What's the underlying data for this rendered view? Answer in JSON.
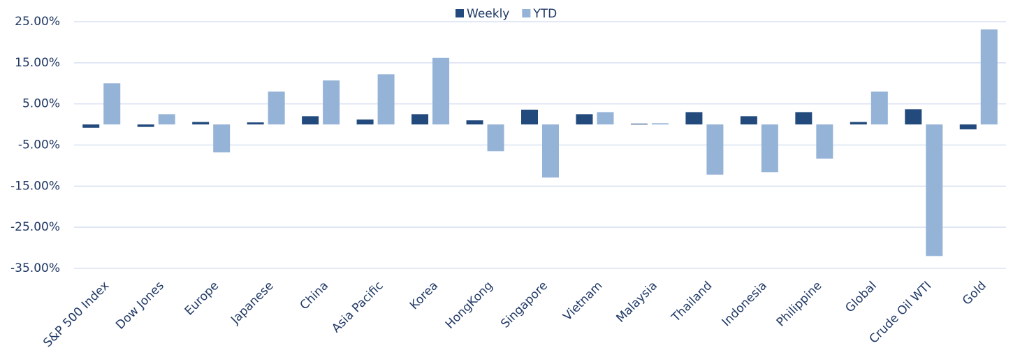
{
  "chart_data": {
    "type": "bar",
    "categories": [
      "S&P 500 Index",
      "Dow Jones",
      "Europe",
      "Japanese",
      "China",
      "Asia Pacific",
      "Korea",
      "HongKong",
      "Singapore",
      "Vietnam",
      "Malaysia",
      "Thailand",
      "Indonesia",
      "Philippine",
      "Global",
      "Crude Oil WTI",
      "Gold"
    ],
    "series": [
      {
        "name": "Weekly",
        "color": "#234a7d",
        "values": [
          -0.8,
          -0.6,
          0.6,
          0.5,
          2.0,
          1.2,
          2.5,
          1.0,
          3.6,
          2.5,
          0.2,
          3.0,
          2.0,
          3.0,
          0.6,
          3.7,
          -1.2
        ]
      },
      {
        "name": "YTD",
        "color": "#95b3d7",
        "values": [
          10.0,
          2.5,
          -6.8,
          8.0,
          10.7,
          12.2,
          16.2,
          -6.5,
          -12.9,
          3.0,
          0.3,
          -12.2,
          -11.6,
          -8.3,
          8.0,
          -32.0,
          23.1
        ]
      }
    ],
    "ylim": [
      -35,
      25
    ],
    "yticks": [
      {
        "value": -35,
        "label": "-35.00%"
      },
      {
        "value": -25,
        "label": "-25.00%"
      },
      {
        "value": -15,
        "label": "-15.00%"
      },
      {
        "value": -5,
        "label": "-5.00%"
      },
      {
        "value": 5,
        "label": "5.00%"
      },
      {
        "value": 15,
        "label": "15.00%"
      },
      {
        "value": 25,
        "label": "25.00%"
      }
    ],
    "grid": true,
    "legend": "top"
  }
}
